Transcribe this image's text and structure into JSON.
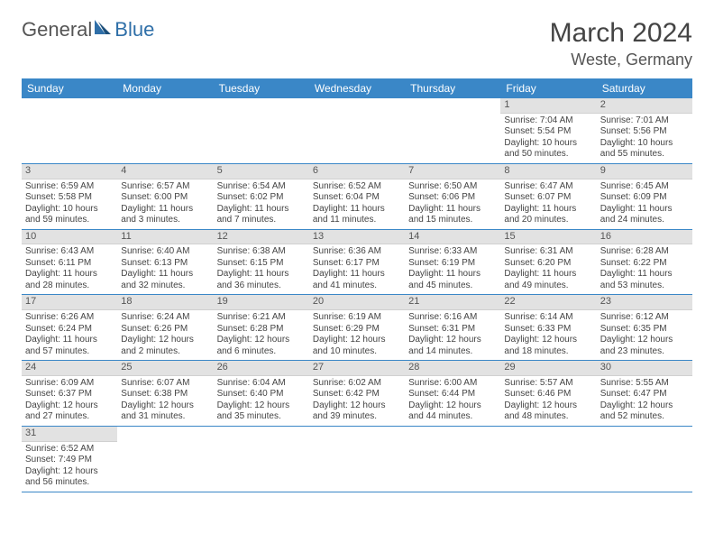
{
  "logo": {
    "text1": "General",
    "text2": "Blue"
  },
  "title": "March 2024",
  "location": "Weste, Germany",
  "weekdays": [
    "Sunday",
    "Monday",
    "Tuesday",
    "Wednesday",
    "Thursday",
    "Friday",
    "Saturday"
  ],
  "colors": {
    "header_bg": "#3a87c7",
    "header_text": "#ffffff",
    "daynum_bg": "#e2e2e2",
    "row_border": "#3a87c7",
    "logo_blue": "#2f6fa8"
  },
  "weeks": [
    [
      null,
      null,
      null,
      null,
      null,
      {
        "n": "1",
        "sunrise": "Sunrise: 7:04 AM",
        "sunset": "Sunset: 5:54 PM",
        "daylight": "Daylight: 10 hours and 50 minutes."
      },
      {
        "n": "2",
        "sunrise": "Sunrise: 7:01 AM",
        "sunset": "Sunset: 5:56 PM",
        "daylight": "Daylight: 10 hours and 55 minutes."
      }
    ],
    [
      {
        "n": "3",
        "sunrise": "Sunrise: 6:59 AM",
        "sunset": "Sunset: 5:58 PM",
        "daylight": "Daylight: 10 hours and 59 minutes."
      },
      {
        "n": "4",
        "sunrise": "Sunrise: 6:57 AM",
        "sunset": "Sunset: 6:00 PM",
        "daylight": "Daylight: 11 hours and 3 minutes."
      },
      {
        "n": "5",
        "sunrise": "Sunrise: 6:54 AM",
        "sunset": "Sunset: 6:02 PM",
        "daylight": "Daylight: 11 hours and 7 minutes."
      },
      {
        "n": "6",
        "sunrise": "Sunrise: 6:52 AM",
        "sunset": "Sunset: 6:04 PM",
        "daylight": "Daylight: 11 hours and 11 minutes."
      },
      {
        "n": "7",
        "sunrise": "Sunrise: 6:50 AM",
        "sunset": "Sunset: 6:06 PM",
        "daylight": "Daylight: 11 hours and 15 minutes."
      },
      {
        "n": "8",
        "sunrise": "Sunrise: 6:47 AM",
        "sunset": "Sunset: 6:07 PM",
        "daylight": "Daylight: 11 hours and 20 minutes."
      },
      {
        "n": "9",
        "sunrise": "Sunrise: 6:45 AM",
        "sunset": "Sunset: 6:09 PM",
        "daylight": "Daylight: 11 hours and 24 minutes."
      }
    ],
    [
      {
        "n": "10",
        "sunrise": "Sunrise: 6:43 AM",
        "sunset": "Sunset: 6:11 PM",
        "daylight": "Daylight: 11 hours and 28 minutes."
      },
      {
        "n": "11",
        "sunrise": "Sunrise: 6:40 AM",
        "sunset": "Sunset: 6:13 PM",
        "daylight": "Daylight: 11 hours and 32 minutes."
      },
      {
        "n": "12",
        "sunrise": "Sunrise: 6:38 AM",
        "sunset": "Sunset: 6:15 PM",
        "daylight": "Daylight: 11 hours and 36 minutes."
      },
      {
        "n": "13",
        "sunrise": "Sunrise: 6:36 AM",
        "sunset": "Sunset: 6:17 PM",
        "daylight": "Daylight: 11 hours and 41 minutes."
      },
      {
        "n": "14",
        "sunrise": "Sunrise: 6:33 AM",
        "sunset": "Sunset: 6:19 PM",
        "daylight": "Daylight: 11 hours and 45 minutes."
      },
      {
        "n": "15",
        "sunrise": "Sunrise: 6:31 AM",
        "sunset": "Sunset: 6:20 PM",
        "daylight": "Daylight: 11 hours and 49 minutes."
      },
      {
        "n": "16",
        "sunrise": "Sunrise: 6:28 AM",
        "sunset": "Sunset: 6:22 PM",
        "daylight": "Daylight: 11 hours and 53 minutes."
      }
    ],
    [
      {
        "n": "17",
        "sunrise": "Sunrise: 6:26 AM",
        "sunset": "Sunset: 6:24 PM",
        "daylight": "Daylight: 11 hours and 57 minutes."
      },
      {
        "n": "18",
        "sunrise": "Sunrise: 6:24 AM",
        "sunset": "Sunset: 6:26 PM",
        "daylight": "Daylight: 12 hours and 2 minutes."
      },
      {
        "n": "19",
        "sunrise": "Sunrise: 6:21 AM",
        "sunset": "Sunset: 6:28 PM",
        "daylight": "Daylight: 12 hours and 6 minutes."
      },
      {
        "n": "20",
        "sunrise": "Sunrise: 6:19 AM",
        "sunset": "Sunset: 6:29 PM",
        "daylight": "Daylight: 12 hours and 10 minutes."
      },
      {
        "n": "21",
        "sunrise": "Sunrise: 6:16 AM",
        "sunset": "Sunset: 6:31 PM",
        "daylight": "Daylight: 12 hours and 14 minutes."
      },
      {
        "n": "22",
        "sunrise": "Sunrise: 6:14 AM",
        "sunset": "Sunset: 6:33 PM",
        "daylight": "Daylight: 12 hours and 18 minutes."
      },
      {
        "n": "23",
        "sunrise": "Sunrise: 6:12 AM",
        "sunset": "Sunset: 6:35 PM",
        "daylight": "Daylight: 12 hours and 23 minutes."
      }
    ],
    [
      {
        "n": "24",
        "sunrise": "Sunrise: 6:09 AM",
        "sunset": "Sunset: 6:37 PM",
        "daylight": "Daylight: 12 hours and 27 minutes."
      },
      {
        "n": "25",
        "sunrise": "Sunrise: 6:07 AM",
        "sunset": "Sunset: 6:38 PM",
        "daylight": "Daylight: 12 hours and 31 minutes."
      },
      {
        "n": "26",
        "sunrise": "Sunrise: 6:04 AM",
        "sunset": "Sunset: 6:40 PM",
        "daylight": "Daylight: 12 hours and 35 minutes."
      },
      {
        "n": "27",
        "sunrise": "Sunrise: 6:02 AM",
        "sunset": "Sunset: 6:42 PM",
        "daylight": "Daylight: 12 hours and 39 minutes."
      },
      {
        "n": "28",
        "sunrise": "Sunrise: 6:00 AM",
        "sunset": "Sunset: 6:44 PM",
        "daylight": "Daylight: 12 hours and 44 minutes."
      },
      {
        "n": "29",
        "sunrise": "Sunrise: 5:57 AM",
        "sunset": "Sunset: 6:46 PM",
        "daylight": "Daylight: 12 hours and 48 minutes."
      },
      {
        "n": "30",
        "sunrise": "Sunrise: 5:55 AM",
        "sunset": "Sunset: 6:47 PM",
        "daylight": "Daylight: 12 hours and 52 minutes."
      }
    ],
    [
      {
        "n": "31",
        "sunrise": "Sunrise: 6:52 AM",
        "sunset": "Sunset: 7:49 PM",
        "daylight": "Daylight: 12 hours and 56 minutes."
      },
      null,
      null,
      null,
      null,
      null,
      null
    ]
  ]
}
